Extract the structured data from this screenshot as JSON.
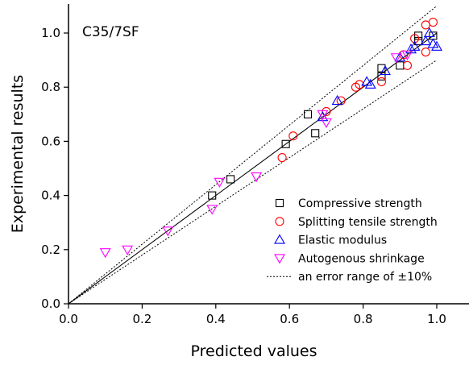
{
  "chart_data": {
    "type": "scatter",
    "annotation": "C35/7SF",
    "xlabel": "Predicted values",
    "ylabel": "Experimental results",
    "xlim": [
      0.0,
      1.08
    ],
    "ylim": [
      0.0,
      1.1
    ],
    "xticks": [
      "0.0",
      "0.2",
      "0.4",
      "0.6",
      "0.8",
      "1.0"
    ],
    "yticks": [
      "0.0",
      "0.2",
      "0.4",
      "0.6",
      "0.8",
      "1.0"
    ],
    "legend_position": "bottom-right",
    "series": [
      {
        "name": "Compressive strength",
        "marker": "square",
        "color": "#000000",
        "points": [
          [
            0.39,
            0.4
          ],
          [
            0.44,
            0.46
          ],
          [
            0.59,
            0.59
          ],
          [
            0.65,
            0.7
          ],
          [
            0.67,
            0.63
          ],
          [
            0.85,
            0.84
          ],
          [
            0.85,
            0.87
          ],
          [
            0.9,
            0.88
          ],
          [
            0.95,
            0.99
          ],
          [
            0.95,
            0.97
          ],
          [
            0.99,
            0.99
          ]
        ]
      },
      {
        "name": "Splitting tensile strength",
        "marker": "circle",
        "color": "#ff0000",
        "points": [
          [
            0.58,
            0.54
          ],
          [
            0.61,
            0.62
          ],
          [
            0.7,
            0.71
          ],
          [
            0.74,
            0.75
          ],
          [
            0.78,
            0.8
          ],
          [
            0.79,
            0.81
          ],
          [
            0.85,
            0.82
          ],
          [
            0.91,
            0.92
          ],
          [
            0.92,
            0.88
          ],
          [
            0.94,
            0.98
          ],
          [
            0.97,
            0.93
          ],
          [
            0.97,
            1.03
          ],
          [
            0.99,
            1.04
          ]
        ]
      },
      {
        "name": "Elastic modulus",
        "marker": "triangle-up",
        "color": "#0000ff",
        "points": [
          [
            0.69,
            0.69
          ],
          [
            0.73,
            0.75
          ],
          [
            0.81,
            0.82
          ],
          [
            0.82,
            0.81
          ],
          [
            0.86,
            0.86
          ],
          [
            0.9,
            0.91
          ],
          [
            0.93,
            0.94
          ],
          [
            0.94,
            0.95
          ],
          [
            0.97,
            0.97
          ],
          [
            0.98,
            1.0
          ],
          [
            0.99,
            0.96
          ],
          [
            1.0,
            0.95
          ]
        ]
      },
      {
        "name": "Autogenous shrinkage",
        "marker": "triangle-down",
        "color": "#ff00ff",
        "points": [
          [
            0.1,
            0.19
          ],
          [
            0.16,
            0.2
          ],
          [
            0.27,
            0.27
          ],
          [
            0.39,
            0.35
          ],
          [
            0.41,
            0.45
          ],
          [
            0.51,
            0.47
          ],
          [
            0.69,
            0.7
          ],
          [
            0.7,
            0.67
          ],
          [
            0.89,
            0.91
          ],
          [
            0.92,
            0.92
          ]
        ]
      }
    ],
    "reference_lines": [
      {
        "name": "",
        "style": "solid",
        "color": "#000000",
        "slope": 1.0
      },
      {
        "name": "an error range of ±10%",
        "style": "dotted",
        "color": "#000000",
        "slope": 1.1
      },
      {
        "name": "",
        "style": "dotted",
        "color": "#000000",
        "slope": 0.9
      }
    ]
  }
}
